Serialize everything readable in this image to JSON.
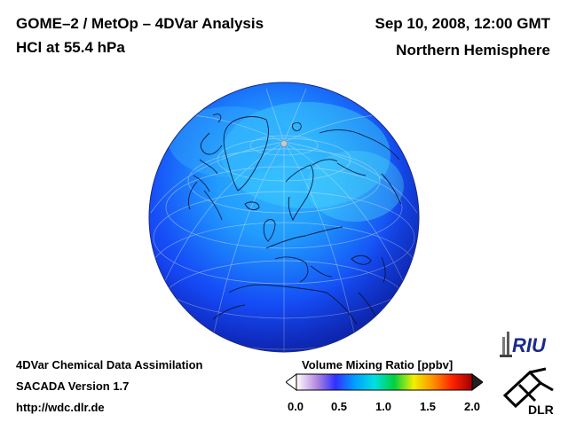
{
  "header": {
    "title_line1": "GOME–2 / MetOp – 4DVar Analysis",
    "title_line2": "HCl at 55.4 hPa",
    "datetime": "Sep 10, 2008, 12:00 GMT",
    "hemisphere": "Northern Hemisphere"
  },
  "footer": {
    "line1": "4DVar Chemical Data Assimilation",
    "line2": "SACADA Version 1.7",
    "url": "http://wdc.dlr.de"
  },
  "colorbar": {
    "title": "Volume Mixing Ratio [ppbv]",
    "ticks": [
      "0.0",
      "0.5",
      "1.0",
      "1.5",
      "2.0"
    ],
    "range": [
      0.0,
      2.0
    ],
    "colors": [
      "#ffffff",
      "#b88ce0",
      "#3030ff",
      "#00a0ff",
      "#00e0e0",
      "#00d040",
      "#f0f000",
      "#ff9000",
      "#ff2000",
      "#a00000"
    ]
  },
  "logos": {
    "riu": "RIU",
    "dlr": "DLR"
  },
  "map": {
    "projection": "orthographic",
    "center_lat": 60,
    "center_lon": 10,
    "variable_range_shown": "approx. 0.4 to 0.9 ppbv"
  }
}
